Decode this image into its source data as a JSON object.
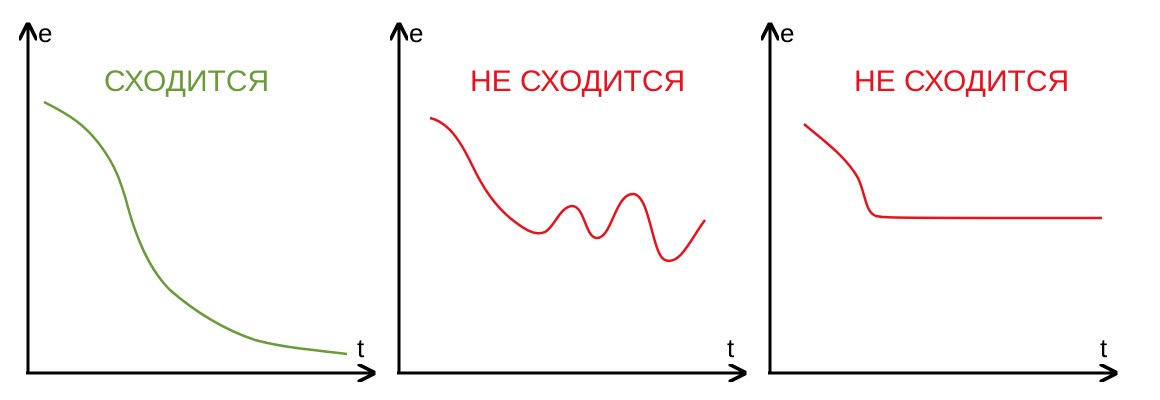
{
  "colors": {
    "axis": "#000000",
    "converges": "#6b9a3a",
    "diverges": "#e8121c"
  },
  "panels": [
    {
      "title": "СХОДИТСЯ",
      "y_label": "e",
      "x_label": "t",
      "title_color": "#6b9a3a",
      "curve_color": "#6b9a3a"
    },
    {
      "title": "НЕ СХОДИТСЯ",
      "y_label": "e",
      "x_label": "t",
      "title_color": "#e8121c",
      "curve_color": "#e8121c"
    },
    {
      "title": "НЕ СХОДИТСЯ",
      "y_label": "e",
      "x_label": "t",
      "title_color": "#e8121c",
      "curve_color": "#e8121c"
    }
  ]
}
